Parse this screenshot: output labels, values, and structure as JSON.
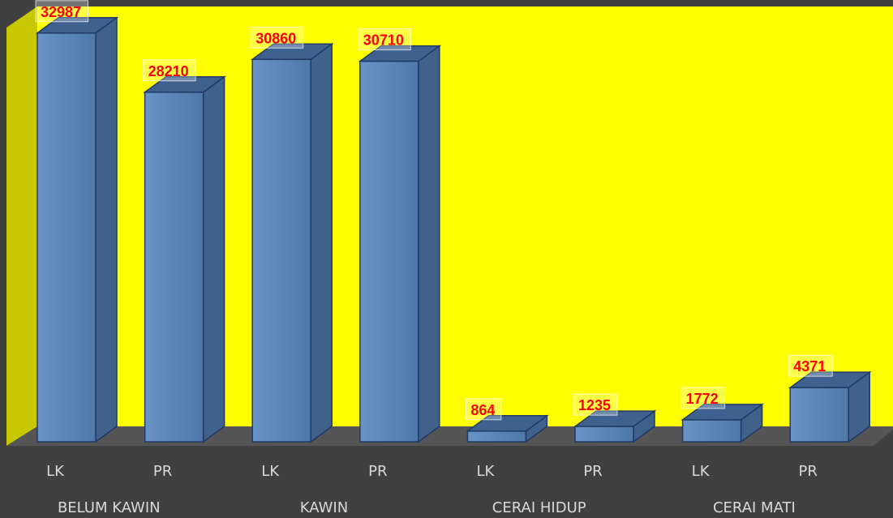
{
  "chart_data": {
    "type": "bar",
    "style": "3d-column",
    "groups": [
      "BELUM KAWIN",
      "KAWIN",
      "CERAI HIDUP",
      "CERAI MATI"
    ],
    "categories": [
      "LK",
      "PR",
      "LK",
      "PR",
      "LK",
      "PR",
      "LK",
      "PR"
    ],
    "values": [
      32987,
      28210,
      30860,
      30710,
      864,
      1235,
      1772,
      4371
    ],
    "data_labels": [
      "32987",
      "28210",
      "30860",
      "30710",
      "864",
      "1235",
      "1772",
      "4371"
    ],
    "ylim": [
      0,
      35000
    ],
    "grid": false,
    "legend": false,
    "colors": {
      "background": "#404040",
      "back_wall": "#ffff00",
      "side_wall": "#c8c800",
      "floor": "#555555",
      "bar_front": "#5b85b8",
      "bar_top": "#3f6190",
      "bar_side": "#40618a",
      "bar_outline": "#1f3a66",
      "label_text": "#ff0000",
      "axis_text": "#d9d9d9"
    }
  }
}
